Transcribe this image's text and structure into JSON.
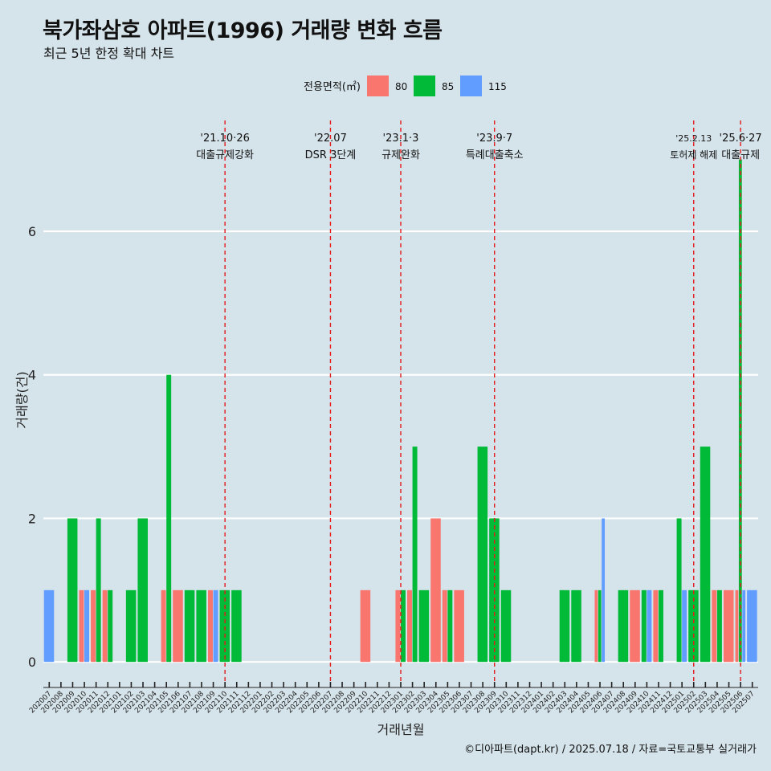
{
  "title": "북가좌삼호 아파트(1996) 거래량 변화 흐름",
  "subtitle": "최근 5년 한정 확대 차트",
  "caption": "©디아파트(dapt.kr) / 2025.07.18 / 자료=국토교통부 실거래가",
  "colors": {
    "80": "#f8766d",
    "85": "#00ba38",
    "115": "#619cff",
    "event_line": "#e31a1c",
    "background": "#d5e3ea",
    "grid": "#ffffff"
  },
  "chart_data": {
    "type": "bar",
    "bar_mode": "dodge",
    "xlabel": "거래년월",
    "ylabel": "거래량(건)",
    "ylim": [
      -0.3,
      7.6
    ],
    "yticks": [
      0,
      2,
      4,
      6
    ],
    "grid": true,
    "legend": {
      "title": "전용면적(㎡)",
      "placement": "top",
      "entries": [
        "80",
        "85",
        "115"
      ]
    },
    "categories": [
      "202007",
      "202008",
      "202009",
      "202010",
      "202011",
      "202012",
      "202101",
      "202102",
      "202103",
      "202104",
      "202105",
      "202106",
      "202107",
      "202108",
      "202109",
      "202110",
      "202111",
      "202112",
      "202201",
      "202202",
      "202203",
      "202204",
      "202205",
      "202206",
      "202207",
      "202208",
      "202209",
      "202210",
      "202211",
      "202212",
      "202301",
      "202302",
      "202303",
      "202304",
      "202305",
      "202306",
      "202307",
      "202308",
      "202309",
      "202310",
      "202311",
      "202312",
      "202401",
      "202402",
      "202403",
      "202404",
      "202405",
      "202406",
      "202407",
      "202408",
      "202409",
      "202410",
      "202411",
      "202412",
      "202501",
      "202502",
      "202503",
      "202504",
      "202505",
      "202506",
      "202507"
    ],
    "series": [
      {
        "name": "80",
        "values": [
          0,
          0,
          0,
          1,
          1,
          1,
          0,
          0,
          0,
          0,
          1,
          1,
          0,
          0,
          1,
          0,
          0,
          0,
          0,
          0,
          0,
          0,
          0,
          0,
          0,
          0,
          0,
          1,
          0,
          0,
          1,
          1,
          0,
          2,
          1,
          1,
          0,
          0,
          0,
          0,
          0,
          0,
          0,
          0,
          0,
          0,
          0,
          1,
          0,
          0,
          1,
          0,
          1,
          0,
          0,
          0,
          0,
          1,
          1,
          1,
          0
        ]
      },
      {
        "name": "85",
        "values": [
          0,
          0,
          2,
          0,
          2,
          1,
          0,
          1,
          2,
          0,
          4,
          0,
          1,
          1,
          0,
          1,
          1,
          0,
          0,
          0,
          0,
          0,
          0,
          0,
          0,
          0,
          0,
          0,
          0,
          0,
          1,
          3,
          1,
          0,
          1,
          0,
          0,
          3,
          2,
          1,
          0,
          0,
          0,
          0,
          1,
          1,
          0,
          1,
          0,
          1,
          0,
          1,
          1,
          0,
          2,
          1,
          3,
          1,
          0,
          7,
          0
        ]
      },
      {
        "name": "115",
        "values": [
          1,
          0,
          0,
          1,
          0,
          0,
          0,
          0,
          0,
          0,
          0,
          0,
          0,
          0,
          1,
          0,
          0,
          0,
          0,
          0,
          0,
          0,
          0,
          0,
          0,
          0,
          0,
          0,
          0,
          0,
          0,
          0,
          0,
          0,
          0,
          0,
          0,
          0,
          0,
          0,
          0,
          0,
          0,
          0,
          0,
          0,
          0,
          2,
          0,
          0,
          0,
          1,
          0,
          0,
          1,
          0,
          0,
          0,
          0,
          1,
          1
        ]
      }
    ],
    "events": [
      {
        "x": "202110",
        "date": "'21.10·26",
        "label": "대출규제강화"
      },
      {
        "x": "202207",
        "date": "'22.07",
        "label": "DSR 3단계"
      },
      {
        "x": "202301",
        "date": "'23.1·3",
        "label": "규제완화"
      },
      {
        "x": "202309",
        "date": "'23.9·7",
        "label": "특례대출축소"
      },
      {
        "x": "202502",
        "date": "'25.2.13",
        "label": "토허제 해제"
      },
      {
        "x": "202506",
        "date": "'25.6·27",
        "label": "대출규제"
      }
    ]
  }
}
